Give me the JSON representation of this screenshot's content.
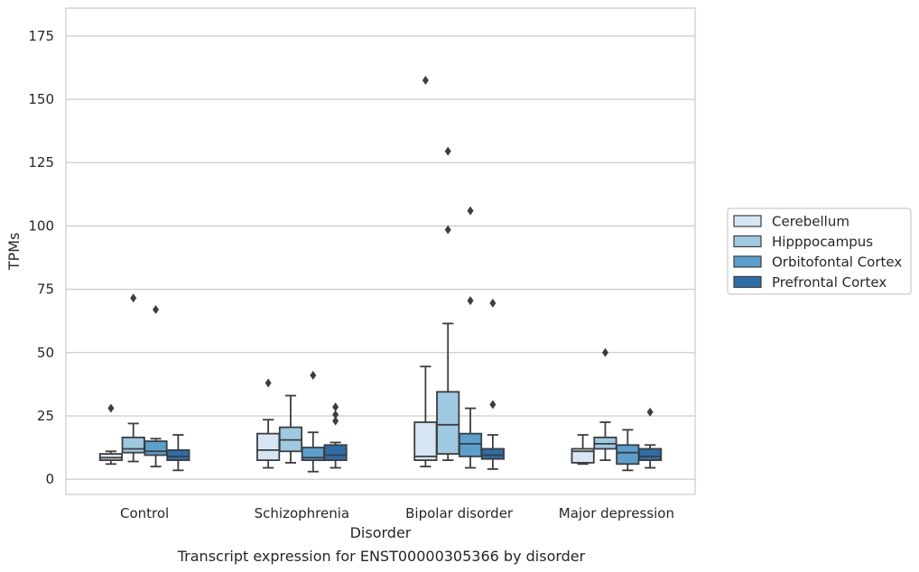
{
  "chart_data": {
    "type": "box",
    "caption": "Transcript expression for ENST00000305366 by disorder",
    "xlabel": "Disorder",
    "ylabel": "TPMs",
    "ylim": [
      -6,
      186
    ],
    "yticks": [
      0,
      25,
      50,
      75,
      100,
      125,
      150,
      175
    ],
    "grid": "horizontal",
    "legend_position": "right",
    "categories": [
      "Control",
      "Schizophrenia",
      "Bipolar disorder",
      "Major depression"
    ],
    "series": [
      {
        "name": "Cerebellum",
        "color": "#d6e6f4",
        "boxes": [
          {
            "whislo": 6,
            "q1": 7.5,
            "med": 8.5,
            "q3": 10,
            "whishi": 11,
            "fliers": [
              28
            ]
          },
          {
            "whislo": 4.5,
            "q1": 7.5,
            "med": 11.5,
            "q3": 18,
            "whishi": 23.5,
            "fliers": [
              38
            ]
          },
          {
            "whislo": 5,
            "q1": 7.5,
            "med": 9,
            "q3": 22.5,
            "whishi": 44.5,
            "fliers": [
              157.5
            ]
          },
          {
            "whislo": 6,
            "q1": 6.5,
            "med": 11,
            "q3": 12,
            "whishi": 17.5,
            "fliers": []
          }
        ]
      },
      {
        "name": "Hipppocampus",
        "color": "#9ecae1",
        "boxes": [
          {
            "whislo": 7,
            "q1": 10.5,
            "med": 12,
            "q3": 16.5,
            "whishi": 22,
            "fliers": [
              71.5
            ]
          },
          {
            "whislo": 6.5,
            "q1": 11,
            "med": 15.5,
            "q3": 20.5,
            "whishi": 33,
            "fliers": []
          },
          {
            "whislo": 7.5,
            "q1": 10,
            "med": 21.5,
            "q3": 34.5,
            "whishi": 61.5,
            "fliers": [
              129.5,
              98.5
            ]
          },
          {
            "whislo": 7.5,
            "q1": 12,
            "med": 14,
            "q3": 16.5,
            "whishi": 22.5,
            "fliers": [
              50
            ]
          }
        ]
      },
      {
        "name": "Orbitofontal Cortex",
        "color": "#5a9fcd",
        "boxes": [
          {
            "whislo": 5,
            "q1": 9.5,
            "med": 11,
            "q3": 15,
            "whishi": 16,
            "fliers": [
              67
            ]
          },
          {
            "whislo": 3,
            "q1": 7.5,
            "med": 8.5,
            "q3": 12.5,
            "whishi": 18.5,
            "fliers": [
              41
            ]
          },
          {
            "whislo": 4.5,
            "q1": 9,
            "med": 14,
            "q3": 18,
            "whishi": 28,
            "fliers": [
              106,
              70.5
            ]
          },
          {
            "whislo": 3.5,
            "q1": 6,
            "med": 10.5,
            "q3": 13.5,
            "whishi": 19.5,
            "fliers": []
          }
        ]
      },
      {
        "name": "Prefrontal Cortex",
        "color": "#2d6da8",
        "boxes": [
          {
            "whislo": 3.5,
            "q1": 7.5,
            "med": 9,
            "q3": 11.5,
            "whishi": 17.5,
            "fliers": []
          },
          {
            "whislo": 4.5,
            "q1": 7.5,
            "med": 9.5,
            "q3": 13.5,
            "whishi": 14.5,
            "fliers": [
              28.5,
              25.5,
              23
            ]
          },
          {
            "whislo": 4,
            "q1": 8,
            "med": 9.5,
            "q3": 12,
            "whishi": 17.5,
            "fliers": [
              69.5,
              29.5
            ]
          },
          {
            "whislo": 4.5,
            "q1": 7.5,
            "med": 9,
            "q3": 12,
            "whishi": 13.5,
            "fliers": [
              26.5
            ]
          }
        ]
      }
    ]
  }
}
